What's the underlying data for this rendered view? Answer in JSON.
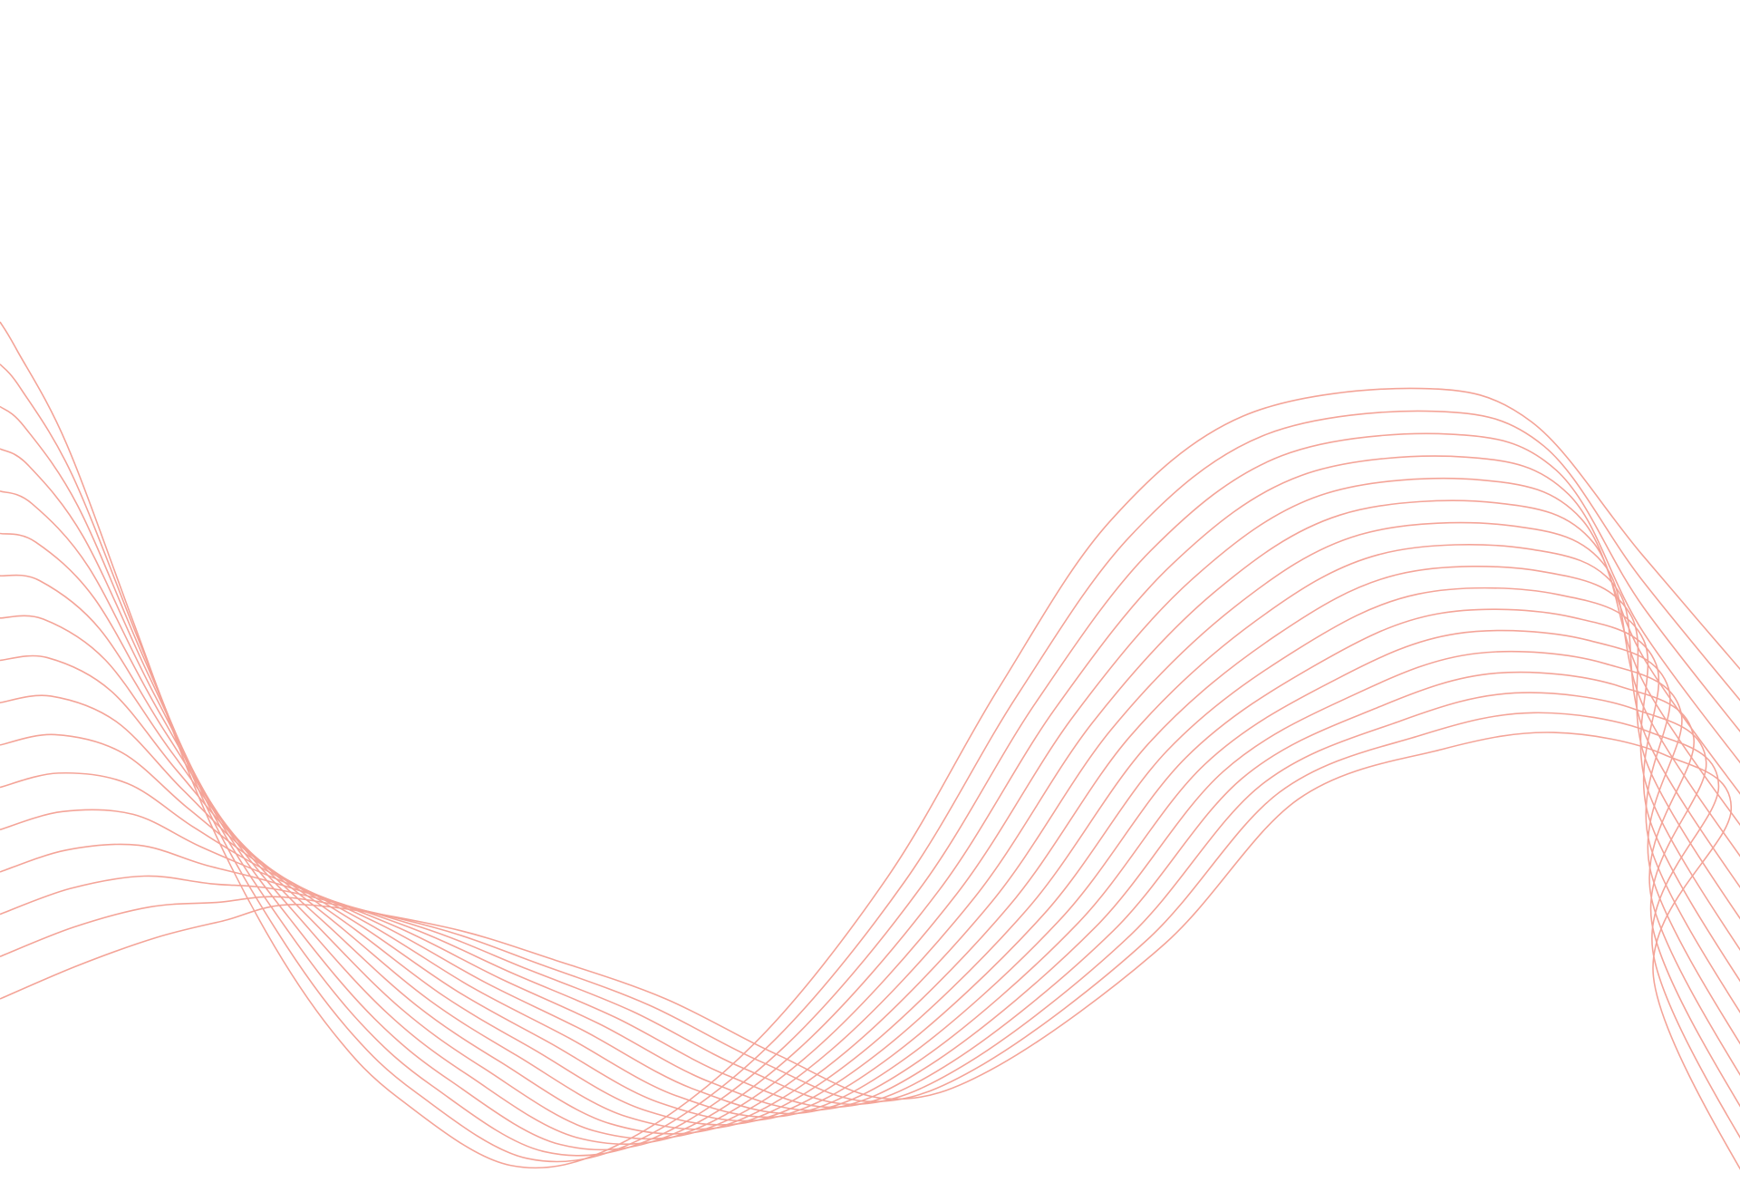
{
  "background": {
    "color": "#ffffff"
  },
  "waves": {
    "stroke_color": "#f4a498",
    "style": "decorative-line-wave"
  }
}
